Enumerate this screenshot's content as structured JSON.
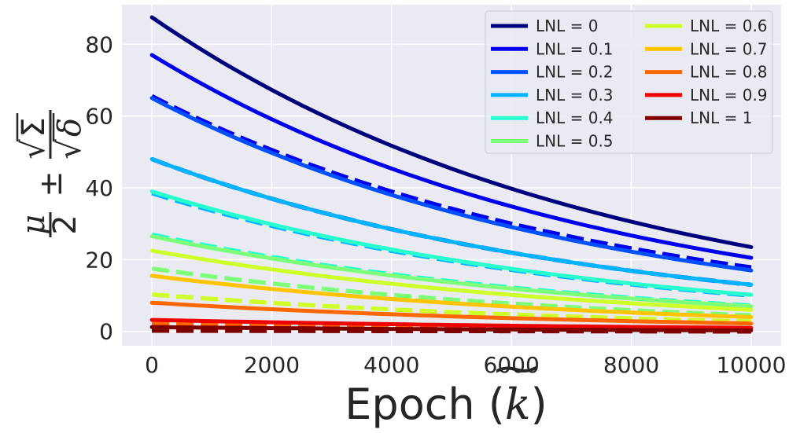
{
  "chart_data": {
    "type": "line",
    "title": "",
    "xlabel": "Epoch (k̃)",
    "xlabel_parts": {
      "prefix": "Epoch (",
      "var": "k",
      "accent": "~",
      "suffix": ")"
    },
    "ylabel": "μ/2 ± √Σ/√δ",
    "ylabel_parts": {
      "mu": "μ",
      "two": "2",
      "pm": "±",
      "sigma": "Σ",
      "delta": "δ",
      "root": "√"
    },
    "xlim": [
      -500,
      10500
    ],
    "ylim": [
      -4,
      91
    ],
    "xticks": [
      0,
      2000,
      4000,
      6000,
      8000,
      10000
    ],
    "xtick_labels": [
      "0",
      "2000",
      "4000",
      "6000",
      "8000",
      "10000"
    ],
    "yticks": [
      0,
      20,
      40,
      60,
      80
    ],
    "ytick_labels": [
      "0",
      "20",
      "40",
      "60",
      "80"
    ],
    "grid": true,
    "legend_position": "top-right",
    "note": "Solid lines are the upper curve (μ/2 + √Σ/√δ) and dashed lines the lower curve (μ/2 − √Σ/√δ) for each LNL value; curves decay roughly exponentially with epoch.",
    "x": [
      0,
      10000
    ],
    "series": [
      {
        "name": "LNL = 0",
        "color": "#00007f",
        "solid": [
          87.5,
          23.5
        ],
        "dashed": [
          65.5,
          17.8
        ]
      },
      {
        "name": "LNL = 0.1",
        "color": "#0000ec",
        "solid": [
          77.0,
          20.5
        ],
        "dashed": [
          65.5,
          17.8
        ]
      },
      {
        "name": "LNL = 0.2",
        "color": "#0050ff",
        "solid": [
          65.0,
          17.0
        ],
        "dashed": [
          48.0,
          13.0
        ]
      },
      {
        "name": "LNL = 0.3",
        "color": "#00b4ff",
        "solid": [
          48.0,
          13.0
        ],
        "dashed": [
          38.5,
          10.0
        ]
      },
      {
        "name": "LNL = 0.4",
        "color": "#29ffce",
        "solid": [
          39.0,
          10.2
        ],
        "dashed": [
          27.0,
          7.2
        ]
      },
      {
        "name": "LNL = 0.5",
        "color": "#7dff7a",
        "solid": [
          26.5,
          7.0
        ],
        "dashed": [
          17.5,
          4.5
        ]
      },
      {
        "name": "LNL = 0.6",
        "color": "#ceff29",
        "solid": [
          22.5,
          6.0
        ],
        "dashed": [
          10.3,
          2.8
        ]
      },
      {
        "name": "LNL = 0.7",
        "color": "#ffc400",
        "solid": [
          15.5,
          4.0
        ],
        "dashed": [
          2.8,
          0.9
        ]
      },
      {
        "name": "LNL = 0.8",
        "color": "#ff6800",
        "solid": [
          8.0,
          2.2
        ],
        "dashed": [
          2.0,
          0.5
        ]
      },
      {
        "name": "LNL = 0.9",
        "color": "#ed0400",
        "solid": [
          3.2,
          1.0
        ],
        "dashed": [
          1.2,
          0.3
        ]
      },
      {
        "name": "LNL = 1",
        "color": "#7f0000",
        "solid": [
          1.2,
          0.3
        ],
        "dashed": [
          0.2,
          0.0
        ]
      }
    ]
  }
}
